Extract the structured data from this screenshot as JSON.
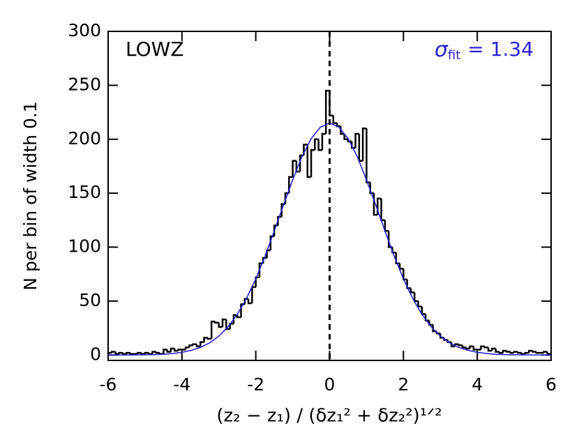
{
  "chart_data": {
    "type": "histogram",
    "title": "LOWZ",
    "annotation": {
      "symbol": "σ",
      "sub": "fit",
      "text": "= 1.34",
      "color": "#2a1fd6"
    },
    "xlabel": "(z₂ − z₁) / (δz₁² + δz₂²)¹ᐟ²",
    "ylabel": "N per bin of width 0.1",
    "xlim": [
      -6,
      6
    ],
    "xticks": [
      -6,
      -4,
      -2,
      0,
      2,
      4,
      6
    ],
    "ylim": [
      -5,
      300
    ],
    "yticks": [
      0,
      50,
      100,
      150,
      200,
      250,
      300
    ],
    "vline": 0,
    "color": "#000000",
    "bins": [
      -6.0,
      -5.9,
      -5.8,
      -5.7,
      -5.6,
      -5.5,
      -5.4,
      -5.3,
      -5.2,
      -5.1,
      -5.0,
      -4.9,
      -4.8,
      -4.7,
      -4.6,
      -4.5,
      -4.4,
      -4.3,
      -4.2,
      -4.1,
      -4.0,
      -3.9,
      -3.8,
      -3.7,
      -3.6,
      -3.5,
      -3.4,
      -3.3,
      -3.2,
      -3.1,
      -3.0,
      -2.9,
      -2.8,
      -2.7,
      -2.6,
      -2.5,
      -2.4,
      -2.3,
      -2.2,
      -2.1,
      -2.0,
      -1.9,
      -1.8,
      -1.7,
      -1.6,
      -1.5,
      -1.4,
      -1.3,
      -1.2,
      -1.1,
      -1.0,
      -0.9,
      -0.8,
      -0.7,
      -0.6,
      -0.5,
      -0.4,
      -0.3,
      -0.2,
      -0.1,
      0.0,
      0.1,
      0.2,
      0.3,
      0.4,
      0.5,
      0.6,
      0.7,
      0.8,
      0.9,
      1.0,
      1.1,
      1.2,
      1.3,
      1.4,
      1.5,
      1.6,
      1.7,
      1.8,
      1.9,
      2.0,
      2.1,
      2.2,
      2.3,
      2.4,
      2.5,
      2.6,
      2.7,
      2.8,
      2.9,
      3.0,
      3.1,
      3.2,
      3.3,
      3.4,
      3.5,
      3.6,
      3.7,
      3.8,
      3.9,
      4.0,
      4.1,
      4.2,
      4.3,
      4.4,
      4.5,
      4.6,
      4.7,
      4.8,
      4.9,
      5.0,
      5.1,
      5.2,
      5.3,
      5.4,
      5.5,
      5.6,
      5.7,
      5.8,
      5.9,
      6.0
    ],
    "values": [
      2,
      3,
      1,
      2,
      1,
      2,
      1,
      1,
      2,
      1,
      2,
      1,
      3,
      2,
      1,
      5,
      3,
      6,
      4,
      5,
      5,
      7,
      9,
      10,
      8,
      12,
      16,
      15,
      31,
      30,
      26,
      33,
      24,
      29,
      37,
      35,
      47,
      52,
      48,
      63,
      72,
      85,
      90,
      97,
      110,
      120,
      128,
      140,
      150,
      165,
      180,
      170,
      185,
      195,
      165,
      190,
      200,
      190,
      205,
      245,
      222,
      215,
      212,
      205,
      200,
      198,
      192,
      205,
      180,
      210,
      160,
      150,
      130,
      145,
      125,
      115,
      100,
      95,
      85,
      80,
      70,
      62,
      58,
      50,
      45,
      38,
      32,
      28,
      22,
      20,
      16,
      14,
      12,
      8,
      10,
      9,
      7,
      6,
      8,
      5,
      5,
      8,
      7,
      4,
      6,
      3,
      2,
      4,
      3,
      2,
      3,
      2,
      1,
      2,
      4,
      3,
      2,
      2,
      3,
      1
    ],
    "fit": {
      "color": "#2a1fd6",
      "x": [
        -6,
        -5.75,
        -5.5,
        -5.25,
        -5,
        -4.75,
        -4.5,
        -4.25,
        -4,
        -3.75,
        -3.5,
        -3.25,
        -3,
        -2.75,
        -2.5,
        -2.25,
        -2,
        -1.75,
        -1.5,
        -1.25,
        -1,
        -0.75,
        -0.5,
        -0.25,
        0,
        0.25,
        0.5,
        0.75,
        1,
        1.25,
        1.5,
        1.75,
        2,
        2.25,
        2.5,
        2.75,
        3,
        3.25,
        3.5,
        3.75,
        4,
        4.25,
        4.5,
        4.75,
        5,
        5.25,
        5.5,
        5.75,
        6
      ],
      "values": [
        0,
        0,
        0,
        0.1,
        0.2,
        0.4,
        0.7,
        1.4,
        2.5,
        4.3,
        7.0,
        11.3,
        17.5,
        26.2,
        37.7,
        52.5,
        70.6,
        91.6,
        114.9,
        139.1,
        162.3,
        183.8,
        200.6,
        211.3,
        215,
        211.3,
        200.6,
        183.8,
        162.3,
        139.1,
        114.9,
        91.6,
        70.6,
        52.5,
        37.7,
        26.2,
        17.5,
        11.3,
        7.0,
        4.3,
        2.5,
        1.4,
        0.7,
        0.4,
        0.2,
        0.1,
        0,
        0,
        0
      ]
    }
  }
}
